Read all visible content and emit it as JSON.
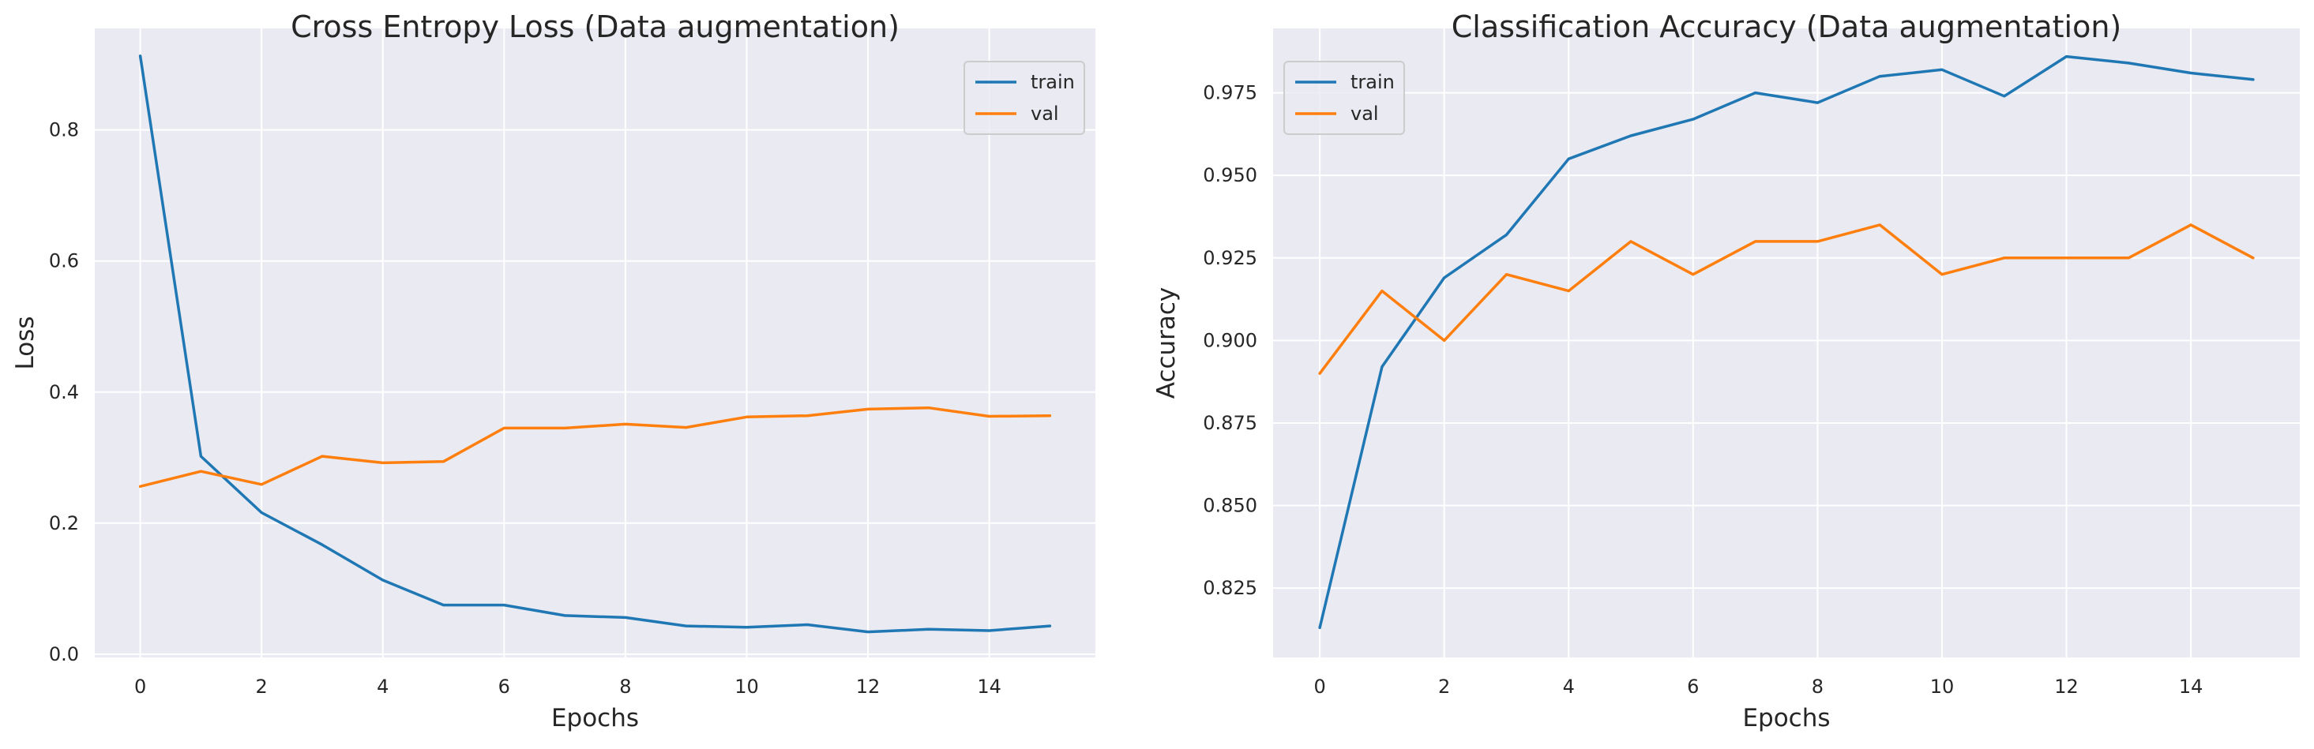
{
  "chart_data": [
    {
      "type": "line",
      "title": "Cross Entropy Loss (Data augmentation)",
      "xlabel": "Epochs",
      "ylabel": "Loss",
      "x": [
        0,
        1,
        2,
        3,
        4,
        5,
        6,
        7,
        8,
        9,
        10,
        11,
        12,
        13,
        14,
        15
      ],
      "xlim": [
        -0.75,
        15.75
      ],
      "ylim": [
        -0.005,
        0.955
      ],
      "xticks": [
        0,
        2,
        4,
        6,
        8,
        10,
        12,
        14
      ],
      "yticks": [
        0.0,
        0.2,
        0.4,
        0.6,
        0.8
      ],
      "ytick_labels": [
        "0.0",
        "0.2",
        "0.4",
        "0.6",
        "0.8"
      ],
      "grid": true,
      "legend_position": "top-right",
      "series": [
        {
          "name": "train",
          "color": "#1f77b4",
          "values": [
            0.913,
            0.302,
            0.216,
            0.167,
            0.113,
            0.075,
            0.075,
            0.059,
            0.056,
            0.043,
            0.041,
            0.045,
            0.034,
            0.038,
            0.036,
            0.043
          ]
        },
        {
          "name": "val",
          "color": "#ff7f0e",
          "values": [
            0.256,
            0.279,
            0.259,
            0.302,
            0.292,
            0.294,
            0.345,
            0.345,
            0.351,
            0.346,
            0.362,
            0.364,
            0.374,
            0.376,
            0.363,
            0.364
          ]
        }
      ]
    },
    {
      "type": "line",
      "title": "Classification Accuracy (Data augmentation)",
      "xlabel": "Epochs",
      "ylabel": "Accuracy",
      "x": [
        0,
        1,
        2,
        3,
        4,
        5,
        6,
        7,
        8,
        9,
        10,
        11,
        12,
        13,
        14,
        15
      ],
      "xlim": [
        -0.75,
        15.75
      ],
      "ylim": [
        0.804,
        0.9945
      ],
      "xticks": [
        0,
        2,
        4,
        6,
        8,
        10,
        12,
        14
      ],
      "yticks": [
        0.825,
        0.85,
        0.875,
        0.9,
        0.925,
        0.95,
        0.975
      ],
      "ytick_labels": [
        "0.825",
        "0.850",
        "0.875",
        "0.900",
        "0.925",
        "0.950",
        "0.975"
      ],
      "grid": true,
      "legend_position": "top-left",
      "series": [
        {
          "name": "train",
          "color": "#1f77b4",
          "values": [
            0.813,
            0.892,
            0.919,
            0.932,
            0.955,
            0.962,
            0.967,
            0.975,
            0.972,
            0.98,
            0.982,
            0.974,
            0.986,
            0.984,
            0.981,
            0.979
          ]
        },
        {
          "name": "val",
          "color": "#ff7f0e",
          "values": [
            0.89,
            0.915,
            0.9,
            0.92,
            0.915,
            0.93,
            0.92,
            0.93,
            0.93,
            0.935,
            0.92,
            0.925,
            0.925,
            0.925,
            0.935,
            0.925
          ]
        }
      ]
    }
  ]
}
